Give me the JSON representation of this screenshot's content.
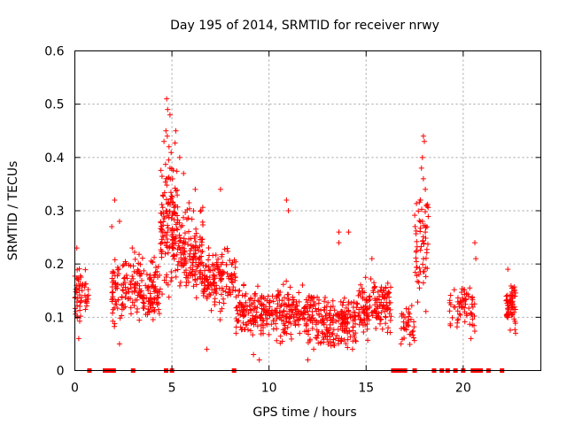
{
  "chart_data": {
    "type": "scatter",
    "title": "Day 195 of 2014, SRMTID for receiver nrwy",
    "xlabel": "GPS time / hours",
    "ylabel": "SRMTID / TECUs",
    "xlim": [
      0,
      24
    ],
    "ylim": [
      0,
      0.6
    ],
    "xticks": [
      0,
      5,
      10,
      15,
      20
    ],
    "yticks": [
      0,
      0.1,
      0.2,
      0.3,
      0.4,
      0.5,
      0.6
    ],
    "xtick_labels": [
      "0",
      "5",
      "10",
      "15",
      "20"
    ],
    "ytick_labels": [
      "0",
      "0.1",
      "0.2",
      "0.3",
      "0.4",
      "0.5",
      "0.6"
    ],
    "grid": true,
    "series": [
      {
        "name": "SRMTID",
        "marker": "+",
        "color": "#ff0000",
        "segments": [
          {
            "t0": 0.0,
            "t1": 0.7,
            "base": 0.14,
            "spread": 0.05,
            "n": 55
          },
          {
            "t0": 1.9,
            "t1": 3.4,
            "base": 0.16,
            "spread": 0.06,
            "n": 120
          },
          {
            "t0": 3.4,
            "t1": 4.4,
            "base": 0.15,
            "spread": 0.05,
            "n": 90
          },
          {
            "t0": 4.4,
            "t1": 5.3,
            "base": 0.28,
            "spread": 0.1,
            "n": 140
          },
          {
            "t0": 5.3,
            "t1": 6.6,
            "base": 0.22,
            "spread": 0.07,
            "n": 140
          },
          {
            "t0": 6.6,
            "t1": 8.3,
            "base": 0.17,
            "spread": 0.05,
            "n": 140
          },
          {
            "t0": 8.3,
            "t1": 10.5,
            "base": 0.11,
            "spread": 0.04,
            "n": 170
          },
          {
            "t0": 10.5,
            "t1": 12.5,
            "base": 0.11,
            "spread": 0.045,
            "n": 160
          },
          {
            "t0": 12.5,
            "t1": 14.5,
            "base": 0.09,
            "spread": 0.04,
            "n": 170
          },
          {
            "t0": 14.5,
            "t1": 16.3,
            "base": 0.12,
            "spread": 0.045,
            "n": 150
          },
          {
            "t0": 16.8,
            "t1": 17.5,
            "base": 0.09,
            "spread": 0.03,
            "n": 35
          },
          {
            "t0": 17.5,
            "t1": 18.2,
            "base": 0.22,
            "spread": 0.09,
            "n": 60
          },
          {
            "t0": 19.3,
            "t1": 20.6,
            "base": 0.12,
            "spread": 0.04,
            "n": 65
          },
          {
            "t0": 22.2,
            "t1": 22.7,
            "base": 0.12,
            "spread": 0.04,
            "n": 60
          }
        ],
        "peaks": [
          [
            4.73,
            0.51
          ],
          [
            4.78,
            0.49
          ],
          [
            4.9,
            0.48
          ],
          [
            4.69,
            0.45
          ],
          [
            4.76,
            0.44
          ],
          [
            4.85,
            0.42
          ],
          [
            4.59,
            0.43
          ],
          [
            5.2,
            0.45
          ],
          [
            4.9,
            0.38
          ],
          [
            4.7,
            0.36
          ],
          [
            5.4,
            0.4
          ],
          [
            5.6,
            0.37
          ],
          [
            6.2,
            0.34
          ],
          [
            7.5,
            0.34
          ],
          [
            6.5,
            0.3
          ],
          [
            2.05,
            0.32
          ],
          [
            2.3,
            0.28
          ],
          [
            0.1,
            0.23
          ],
          [
            1.9,
            0.27
          ],
          [
            17.95,
            0.44
          ],
          [
            18.0,
            0.43
          ],
          [
            17.9,
            0.4
          ],
          [
            17.85,
            0.38
          ],
          [
            17.95,
            0.36
          ],
          [
            18.05,
            0.34
          ],
          [
            17.8,
            0.32
          ],
          [
            18.1,
            0.31
          ],
          [
            17.9,
            0.28
          ],
          [
            18.05,
            0.26
          ],
          [
            10.9,
            0.32
          ],
          [
            11.0,
            0.3
          ],
          [
            13.6,
            0.26
          ],
          [
            14.1,
            0.26
          ],
          [
            13.6,
            0.24
          ],
          [
            15.3,
            0.21
          ],
          [
            20.6,
            0.24
          ],
          [
            20.65,
            0.21
          ],
          [
            22.3,
            0.19
          ],
          [
            9.2,
            0.03
          ],
          [
            9.5,
            0.02
          ],
          [
            12.0,
            0.02
          ],
          [
            12.3,
            0.04
          ],
          [
            14.3,
            0.04
          ],
          [
            0.2,
            0.06
          ],
          [
            2.3,
            0.05
          ],
          [
            6.8,
            0.04
          ],
          [
            8.3,
            0.07
          ],
          [
            16.8,
            0.05
          ],
          [
            20.4,
            0.06
          ],
          [
            22.7,
            0.07
          ]
        ],
        "zero_points": [
          0.75,
          1.55,
          1.75,
          1.9,
          2.0,
          3.0,
          4.7,
          5.0,
          8.2,
          16.4,
          16.6,
          16.8,
          17.0,
          17.5,
          18.5,
          18.9,
          19.2,
          19.6,
          20.0,
          20.5,
          20.7,
          20.9,
          21.3,
          22.0
        ]
      }
    ]
  }
}
